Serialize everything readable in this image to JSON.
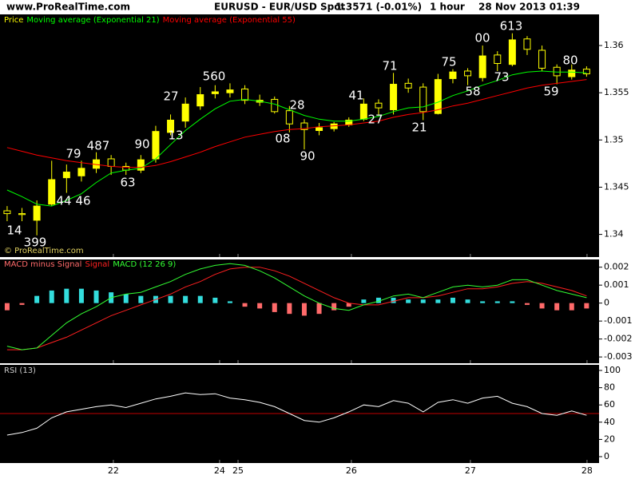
{
  "header": {
    "site": "www.ProRealTime.com",
    "instrument": "EURUSD - EUR/USD Spot",
    "quote": "1.3571 (-0.01%)",
    "interval": "1 hour",
    "datetime": "28 Nov 2013 01:39",
    "watermark": "© ProRealTime.com"
  },
  "chart_data": [
    {
      "type": "candlestick",
      "ylim": [
        1.3376,
        1.3633
      ],
      "yticks": [
        1.34,
        1.345,
        1.35,
        1.355,
        1.36
      ],
      "series": [
        {
          "name": "Price",
          "color": "#ffff00",
          "open": [
            1.3425,
            1.3422,
            1.3415,
            1.3432,
            1.346,
            1.3462,
            1.347,
            1.348,
            1.3472,
            1.3468,
            1.348,
            1.3508,
            1.352,
            1.3536,
            1.3549,
            1.355,
            1.3554,
            1.354,
            1.3543,
            1.3531,
            1.3518,
            1.351,
            1.3512,
            1.3516,
            1.3522,
            1.3539,
            1.3532,
            1.356,
            1.3556,
            1.3528,
            1.3565,
            1.3573,
            1.3566,
            1.359,
            1.358,
            1.3607,
            1.3595,
            1.3577,
            1.3567,
            1.3575
          ],
          "high": [
            1.343,
            1.3428,
            1.3436,
            1.3478,
            1.3474,
            1.3478,
            1.3487,
            1.3484,
            1.3476,
            1.3484,
            1.3515,
            1.3527,
            1.3545,
            1.3556,
            1.3558,
            1.356,
            1.3558,
            1.3548,
            1.3546,
            1.3536,
            1.3522,
            1.3518,
            1.3519,
            1.3524,
            1.3544,
            1.3543,
            1.3571,
            1.3565,
            1.356,
            1.357,
            1.3575,
            1.3576,
            1.36,
            1.3594,
            1.3613,
            1.361,
            1.36,
            1.358,
            1.358,
            1.3578
          ],
          "low": [
            1.3414,
            1.3414,
            1.3399,
            1.343,
            1.3444,
            1.3456,
            1.3465,
            1.3463,
            1.3463,
            1.3465,
            1.3476,
            1.3505,
            1.3513,
            1.3532,
            1.3544,
            1.3545,
            1.3538,
            1.3536,
            1.3528,
            1.3508,
            1.349,
            1.3505,
            1.3509,
            1.3514,
            1.352,
            1.3527,
            1.3527,
            1.355,
            1.3521,
            1.3527,
            1.356,
            1.3558,
            1.3562,
            1.3573,
            1.3578,
            1.359,
            1.3573,
            1.3559,
            1.3564,
            1.3567
          ],
          "close": [
            1.3422,
            1.3421,
            1.343,
            1.3458,
            1.3466,
            1.347,
            1.3479,
            1.3472,
            1.3468,
            1.3479,
            1.3509,
            1.3521,
            1.3538,
            1.3548,
            1.3551,
            1.3553,
            1.3542,
            1.3542,
            1.353,
            1.3517,
            1.3511,
            1.3513,
            1.3517,
            1.3521,
            1.3538,
            1.3534,
            1.3559,
            1.3555,
            1.353,
            1.3564,
            1.3572,
            1.3568,
            1.3589,
            1.3581,
            1.3606,
            1.3596,
            1.3576,
            1.3568,
            1.3574,
            1.357
          ]
        },
        {
          "name": "Moving average (Exponential 21)",
          "color": "#00ff00",
          "values": [
            1.3447,
            1.344,
            1.3432,
            1.343,
            1.3436,
            1.3443,
            1.3455,
            1.3465,
            1.3468,
            1.347,
            1.348,
            1.3495,
            1.351,
            1.3522,
            1.3533,
            1.3541,
            1.3543,
            1.3541,
            1.3538,
            1.3532,
            1.3526,
            1.3522,
            1.352,
            1.352,
            1.3522,
            1.3525,
            1.353,
            1.3534,
            1.3535,
            1.354,
            1.3547,
            1.3552,
            1.3558,
            1.3563,
            1.3569,
            1.3572,
            1.3573,
            1.3572,
            1.3572,
            1.3571
          ]
        },
        {
          "name": "Moving average (Exponential 55)",
          "color": "#ff0000",
          "values": [
            1.3492,
            1.3488,
            1.3484,
            1.3481,
            1.3478,
            1.3476,
            1.3474,
            1.3472,
            1.3471,
            1.3471,
            1.3473,
            1.3477,
            1.3482,
            1.3487,
            1.3493,
            1.3498,
            1.3503,
            1.3506,
            1.3509,
            1.3511,
            1.3512,
            1.3514,
            1.3515,
            1.3516,
            1.3518,
            1.352,
            1.3524,
            1.3527,
            1.3529,
            1.3532,
            1.3536,
            1.3539,
            1.3543,
            1.3547,
            1.3551,
            1.3555,
            1.3558,
            1.356,
            1.3562,
            1.3564
          ]
        }
      ],
      "annotations": [
        "14",
        "399",
        "44",
        "46",
        "79",
        "487",
        "63",
        "90",
        "13",
        "27",
        "560",
        "08",
        "28",
        "90",
        "41",
        "27",
        "71",
        "21",
        "75",
        "58",
        "00",
        "73",
        "613",
        "59",
        "80"
      ]
    },
    {
      "type": "macd",
      "ylim": [
        -0.00335,
        0.00243
      ],
      "yticks": [
        0.002,
        0.001,
        0,
        -0.001,
        -0.002,
        -0.003
      ],
      "series": [
        {
          "name": "MACD minus Signal",
          "type": "bar",
          "color": "#33dddd",
          "negative_color": "#ff6a6a",
          "values": [
            -0.0004,
            -0.0001,
            0.0004,
            0.0007,
            0.0008,
            0.0008,
            0.0007,
            0.0006,
            0.0005,
            0.0004,
            0.0004,
            0.0004,
            0.0004,
            0.0004,
            0.0003,
            0.0001,
            -0.0002,
            -0.0003,
            -0.0005,
            -0.0006,
            -0.0007,
            -0.0006,
            -0.0004,
            -0.0002,
            0.0002,
            0.0003,
            0.0003,
            0.0002,
            0.0002,
            0.0002,
            0.0003,
            0.0002,
            0.0001,
            0.0001,
            0.0001,
            -0.0001,
            -0.0003,
            -0.0004,
            -0.0004,
            -0.0003
          ]
        },
        {
          "name": "Signal",
          "type": "line",
          "color": "#ff2020",
          "values": [
            -0.0026,
            -0.0026,
            -0.0025,
            -0.0022,
            -0.0019,
            -0.0015,
            -0.0011,
            -0.0007,
            -0.0004,
            -0.0001,
            0.0002,
            0.0005,
            0.0009,
            0.0012,
            0.0016,
            0.0019,
            0.002,
            0.002,
            0.0018,
            0.0015,
            0.0011,
            0.0007,
            0.0003,
            0.0,
            -0.0001,
            -0.0001,
            0.0001,
            0.0003,
            0.0003,
            0.0004,
            0.0006,
            0.0008,
            0.0008,
            0.0009,
            0.0011,
            0.0012,
            0.0011,
            0.0009,
            0.0007,
            0.0004
          ]
        },
        {
          "name": "MACD (12 26 9)",
          "type": "line",
          "color": "#33ff33",
          "values": [
            -0.0024,
            -0.0026,
            -0.0025,
            -0.0018,
            -0.0011,
            -0.0006,
            -0.0002,
            0.0003,
            0.0005,
            0.0006,
            0.0009,
            0.0012,
            0.0016,
            0.0019,
            0.0021,
            0.0022,
            0.0021,
            0.0018,
            0.0014,
            0.0009,
            0.0004,
            0.0,
            -0.0003,
            -0.0004,
            -0.0001,
            0.0001,
            0.0004,
            0.0005,
            0.0003,
            0.0006,
            0.0009,
            0.001,
            0.0009,
            0.001,
            0.0013,
            0.0013,
            0.001,
            0.0007,
            0.0005,
            0.0003
          ]
        }
      ]
    },
    {
      "type": "line",
      "ylim": [
        -7.4,
        106.5
      ],
      "yticks": [
        0,
        20,
        40,
        60,
        80,
        100
      ],
      "xlim": [
        -0.48,
        39.84
      ],
      "xticks": [
        {
          "value": 7.15,
          "label": "22"
        },
        {
          "value": 14.3,
          "label": "24"
        },
        {
          "value": 15.54,
          "label": "25"
        },
        {
          "value": 23.17,
          "label": "26"
        },
        {
          "value": 31.18,
          "label": "27"
        },
        {
          "value": 39.03,
          "label": "28"
        }
      ],
      "hline": {
        "value": 50,
        "color": "#ff0000"
      },
      "series": [
        {
          "name": "RSI (13)",
          "color": "#ffffff",
          "values": [
            25,
            28,
            33,
            45,
            52,
            55,
            58,
            60,
            57,
            62,
            67,
            70,
            74,
            72,
            73,
            68,
            66,
            63,
            58,
            50,
            42,
            40,
            45,
            52,
            60,
            58,
            65,
            62,
            52,
            63,
            66,
            62,
            68,
            70,
            62,
            58,
            50,
            48,
            53,
            48
          ]
        }
      ]
    }
  ]
}
